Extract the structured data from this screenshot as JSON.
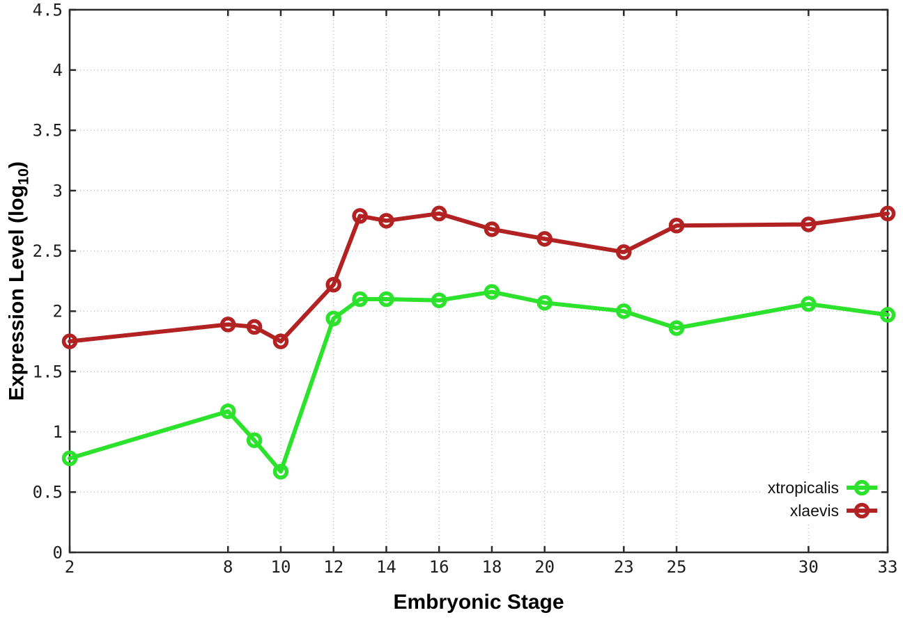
{
  "figure": {
    "background": "#ffffff"
  },
  "chart_data": {
    "type": "line",
    "title": "",
    "xlabel": "Embryonic Stage",
    "ylabel": "Expression Level (log10)",
    "ylabel_parts": {
      "main": "Expression Level (log",
      "sub": "10",
      "end": ")"
    },
    "x": [
      2,
      8,
      9,
      10,
      12,
      13,
      14,
      16,
      18,
      20,
      23,
      25,
      30,
      33
    ],
    "series": [
      {
        "name": "xtropicalis",
        "color": "#2ce22c",
        "values": [
          0.78,
          1.17,
          0.93,
          0.67,
          1.94,
          2.1,
          2.1,
          2.09,
          2.16,
          2.07,
          2.0,
          1.86,
          2.06,
          1.97
        ]
      },
      {
        "name": "xlaevis",
        "color": "#b22222",
        "values": [
          1.75,
          1.89,
          1.87,
          1.75,
          2.22,
          2.79,
          2.75,
          2.81,
          2.68,
          2.6,
          2.49,
          2.71,
          2.72,
          2.81
        ]
      }
    ],
    "xlim": [
      2,
      33
    ],
    "ylim": [
      0,
      4.5
    ],
    "x_ticks": [
      2,
      8,
      10,
      12,
      14,
      16,
      18,
      20,
      23,
      25,
      30,
      33
    ],
    "x_tick_labels": [
      "2",
      "8",
      "10",
      "12",
      "14",
      "16",
      "18",
      "20",
      "23",
      "25",
      "30",
      "33"
    ],
    "y_ticks": [
      0,
      0.5,
      1,
      1.5,
      2,
      2.5,
      3,
      3.5,
      4,
      4.5
    ],
    "y_tick_labels": [
      "0",
      "0.5",
      "1",
      "1.5",
      "2",
      "2.5",
      "3",
      "3.5",
      "4",
      "4.5"
    ],
    "grid": true,
    "grid_style": "dotted",
    "legend_position": "bottom-right",
    "colors": {
      "axis": "#2b2b2b",
      "grid": "#bcbcbc",
      "tick_text": "#1e1e1e"
    }
  }
}
